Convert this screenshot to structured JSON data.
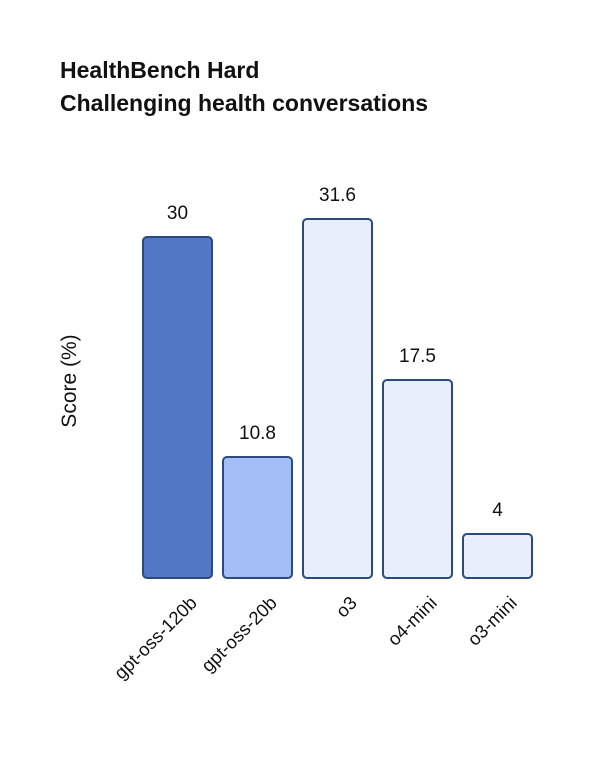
{
  "title": {
    "line1": "HealthBench Hard",
    "line2": "Challenging health conversations"
  },
  "y_axis_label": "Score (%)",
  "chart_data": {
    "type": "bar",
    "title": "HealthBench Hard — Challenging health conversations",
    "xlabel": "",
    "ylabel": "Score (%)",
    "categories": [
      "gpt-oss-120b",
      "gpt-oss-20b",
      "o3",
      "o4-mini",
      "o3-mini"
    ],
    "values": [
      30,
      10.8,
      31.6,
      17.5,
      4
    ],
    "value_labels": [
      "30",
      "10.8",
      "31.6",
      "17.5",
      "4"
    ],
    "ylim": [
      0,
      35
    ],
    "grid": false,
    "legend_position": "none",
    "bar_fill_colors": [
      "#5277c4",
      "#a3bdf7",
      "#e8eefc",
      "#e8eefc",
      "#e8eefc"
    ],
    "bar_border_color": "#2d4a7d",
    "value_label_color": "#111111",
    "background_color": "#ffffff"
  }
}
